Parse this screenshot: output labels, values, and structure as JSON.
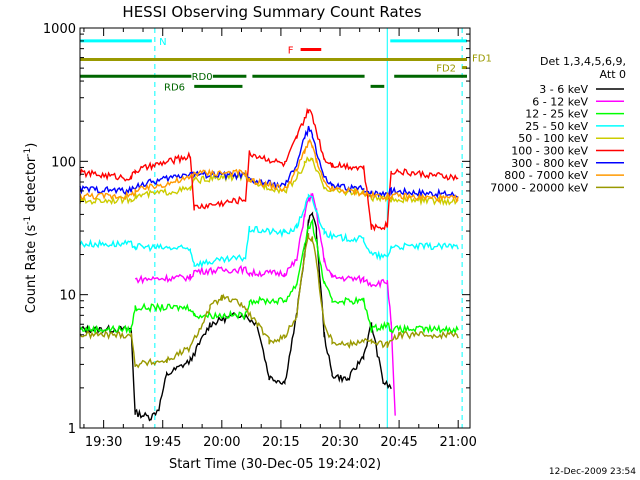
{
  "chart_data": {
    "type": "line",
    "title": "HESSI Observing Summary Count Rates",
    "xlabel": "Start Time (30-Dec-05 19:24:02)",
    "ylabel": "Count Rate (s⁻¹ detector⁻¹)",
    "yscale": "log",
    "ylim": [
      1,
      1000
    ],
    "xlim": [
      "19:24",
      "21:03"
    ],
    "x_ticks": [
      "19:30",
      "19:45",
      "20:00",
      "20:15",
      "20:30",
      "20:45",
      "21:00"
    ],
    "y_ticks": [
      "1",
      "10",
      "100",
      "1000"
    ],
    "legend_title": [
      "Det 1,3,4,5,6,9,",
      "Att 0"
    ],
    "legend_position": "right",
    "grid": false,
    "series": [
      {
        "name": "3 - 6 keV",
        "color": "#000000",
        "x": [
          "19:24",
          "19:37",
          "19:38",
          "19:42",
          "19:44",
          "19:46",
          "19:52",
          "19:57",
          "20:00",
          "20:05",
          "20:09",
          "20:12",
          "20:16",
          "20:19",
          "20:21",
          "20:22",
          "20:23",
          "20:24",
          "20:26",
          "20:28",
          "20:32",
          "20:36",
          "20:38",
          "20:41",
          "20:43",
          "20:45",
          "21:00"
        ],
        "y": [
          5.5,
          5.5,
          1.3,
          1.2,
          1.4,
          2.5,
          3.2,
          6,
          6.5,
          7.2,
          6,
          2.4,
          2.2,
          7,
          20,
          35,
          42,
          30,
          5,
          2.5,
          2.3,
          3.5,
          6,
          2.2,
          2.0,
          null,
          null
        ]
      },
      {
        "name": "6 - 12 keV",
        "color": "#ff00ff",
        "x": [
          "19:24",
          "19:37",
          "19:38",
          "19:52",
          "19:53",
          "20:06",
          "20:07",
          "20:16",
          "20:19",
          "20:21",
          "20:22",
          "20:23",
          "20:24",
          "20:26",
          "20:28",
          "20:36",
          "20:38",
          "20:42",
          "20:43",
          "20:44",
          "20:45",
          "20:46"
        ],
        "y": [
          null,
          null,
          13,
          13.5,
          15,
          15.5,
          14.5,
          14.5,
          18,
          40,
          52,
          55,
          42,
          18,
          13.5,
          13,
          12,
          12.5,
          6,
          1.2,
          null,
          null
        ]
      },
      {
        "name": "12 - 25 keV",
        "color": "#00ff00",
        "x": [
          "19:24",
          "19:37",
          "19:38",
          "19:52",
          "19:53",
          "20:06",
          "20:07",
          "20:16",
          "20:19",
          "20:21",
          "20:22",
          "20:23",
          "20:24",
          "20:26",
          "20:28",
          "20:36",
          "20:38",
          "20:42",
          "20:43",
          "21:00"
        ],
        "y": [
          5.5,
          5.5,
          8,
          8,
          7,
          7,
          9,
          9,
          12,
          24,
          32,
          34,
          25,
          12,
          9,
          9,
          5.5,
          6,
          5.5,
          5.5
        ]
      },
      {
        "name": "25 - 50 keV",
        "color": "#00ffff",
        "x": [
          "19:24",
          "19:37",
          "19:38",
          "19:52",
          "19:53",
          "20:06",
          "20:07",
          "20:16",
          "20:19",
          "20:21",
          "20:22",
          "20:23",
          "20:24",
          "20:26",
          "20:28",
          "20:36",
          "20:38",
          "20:42",
          "20:43",
          "21:00"
        ],
        "y": [
          24,
          24,
          23,
          22,
          17,
          19,
          31,
          29,
          32,
          45,
          54,
          52,
          42,
          30,
          27,
          26,
          20,
          19,
          23,
          23
        ]
      },
      {
        "name": "50 - 100 keV",
        "color": "#cccc00",
        "x": [
          "19:24",
          "19:37",
          "19:38",
          "19:52",
          "19:53",
          "20:06",
          "20:07",
          "20:16",
          "20:19",
          "20:21",
          "20:22",
          "20:23",
          "20:24",
          "20:26",
          "20:28",
          "20:36",
          "20:38",
          "20:42",
          "20:43",
          "21:00"
        ],
        "y": [
          50,
          52,
          55,
          62,
          72,
          78,
          70,
          60,
          75,
          95,
          105,
          100,
          85,
          65,
          60,
          58,
          53,
          52,
          52,
          50
        ]
      },
      {
        "name": "100 - 300 keV",
        "color": "#ff0000",
        "x": [
          "19:24",
          "19:37",
          "19:38",
          "19:52",
          "19:53",
          "20:06",
          "20:07",
          "20:16",
          "20:19",
          "20:21",
          "20:22",
          "20:23",
          "20:24",
          "20:26",
          "20:28",
          "20:36",
          "20:38",
          "20:42",
          "20:43",
          "21:00"
        ],
        "y": [
          82,
          75,
          85,
          110,
          45,
          52,
          115,
          95,
          150,
          210,
          240,
          220,
          170,
          105,
          95,
          90,
          32,
          33,
          85,
          75
        ]
      },
      {
        "name": "300 - 800 keV",
        "color": "#0000ff",
        "x": [
          "19:24",
          "19:37",
          "19:38",
          "19:52",
          "19:53",
          "20:06",
          "20:07",
          "20:16",
          "20:19",
          "20:21",
          "20:22",
          "20:23",
          "20:24",
          "20:26",
          "20:28",
          "20:36",
          "20:38",
          "20:42",
          "20:43",
          "21:00"
        ],
        "y": [
          62,
          60,
          65,
          82,
          80,
          78,
          72,
          65,
          95,
          150,
          175,
          160,
          120,
          75,
          65,
          62,
          58,
          58,
          60,
          56
        ]
      },
      {
        "name": "800 - 7000 keV",
        "color": "#ff9900",
        "x": [
          "19:24",
          "19:37",
          "19:38",
          "19:52",
          "19:53",
          "20:06",
          "20:07",
          "20:16",
          "20:19",
          "20:21",
          "20:22",
          "20:23",
          "20:24",
          "20:26",
          "20:28",
          "20:36",
          "20:38",
          "20:42",
          "20:43",
          "21:00"
        ],
        "y": [
          55,
          55,
          60,
          75,
          82,
          82,
          72,
          62,
          85,
          120,
          140,
          130,
          100,
          68,
          62,
          58,
          55,
          55,
          55,
          52
        ]
      },
      {
        "name": "7000 - 20000 keV",
        "color": "#999900",
        "x": [
          "19:24",
          "19:37",
          "19:38",
          "19:46",
          "19:52",
          "19:57",
          "20:00",
          "20:05",
          "20:09",
          "20:12",
          "20:16",
          "20:19",
          "20:21",
          "20:22",
          "20:23",
          "20:24",
          "20:26",
          "20:28",
          "20:32",
          "20:36",
          "20:38",
          "20:42",
          "20:45",
          "21:00"
        ],
        "y": [
          5,
          5,
          3,
          3.2,
          4,
          8,
          9.5,
          8.5,
          6,
          4.5,
          4.8,
          7,
          20,
          28,
          26,
          18,
          6,
          4.5,
          4.2,
          4.6,
          4.4,
          4.2,
          5,
          5
        ]
      }
    ],
    "annotations": [
      {
        "label": "N",
        "color": "#00ffff",
        "y": 800,
        "segments": [
          [
            "19:24",
            "19:43"
          ],
          [
            "20:42",
            "21:03"
          ]
        ]
      },
      {
        "label": "F",
        "color": "#ff0000",
        "y": 690,
        "segments": [
          [
            "20:20",
            "20:26"
          ]
        ]
      },
      {
        "label": "FD1",
        "color": "#999900",
        "y": 580,
        "segments": [
          [
            "19:24",
            "21:03"
          ]
        ]
      },
      {
        "label": "FD2",
        "color": "#999900",
        "y": 505,
        "segments": [
          [
            "21:01",
            "21:03"
          ]
        ]
      },
      {
        "label": "RD0",
        "color": "#006600",
        "y": 435,
        "segments": [
          [
            "19:24",
            "20:07"
          ],
          [
            "20:07",
            "20:37"
          ],
          [
            "20:43",
            "21:03"
          ]
        ]
      },
      {
        "label": "RD6",
        "color": "#006600",
        "y": 365,
        "segments": [
          [
            "19:53",
            "20:06"
          ],
          [
            "20:37",
            "20:42"
          ]
        ]
      }
    ],
    "vlines": [
      {
        "x": "19:43",
        "color": "#00ffff",
        "style": "dashed"
      },
      {
        "x": "20:42",
        "color": "#00ffff",
        "style": "solid"
      },
      {
        "x": "21:01",
        "color": "#00ffff",
        "style": "dashed"
      }
    ],
    "footer_timestamp": "12-Dec-2009 23:54"
  }
}
